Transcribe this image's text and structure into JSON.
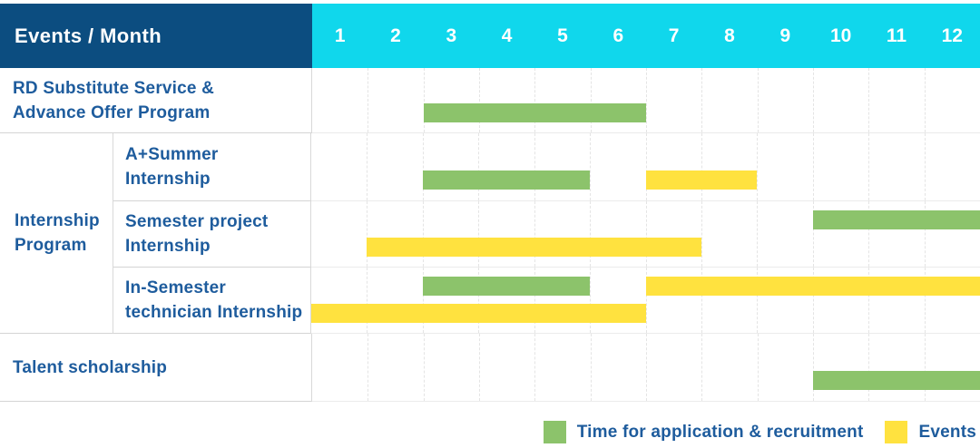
{
  "colors": {
    "header_bg": "#0c4d80",
    "month_header_bg": "#10d7ec",
    "header_text": "#ffffff",
    "label_text": "#1e5c9d",
    "application_bar": "#8cc36b",
    "event_bar": "#ffe23f"
  },
  "table": {
    "header": {
      "title": "Events / Month",
      "months": [
        "1",
        "2",
        "3",
        "4",
        "5",
        "6",
        "7",
        "8",
        "9",
        "10",
        "11",
        "12"
      ]
    },
    "group": {
      "label": "Internship\nProgram"
    },
    "rows": [
      {
        "label": "RD Substitute Service &\nAdvance Offer Program",
        "group": null,
        "lanes": 1,
        "bars": [
          {
            "kind": "application",
            "start": 3,
            "end": 6,
            "lane": 0
          }
        ]
      },
      {
        "label": "A+Summer\nInternship",
        "group": "Internship Program",
        "lanes": 1,
        "bars": [
          {
            "kind": "application",
            "start": 3,
            "end": 5,
            "lane": 0
          },
          {
            "kind": "event",
            "start": 7,
            "end": 8,
            "lane": 0
          }
        ]
      },
      {
        "label": "Semester project\nInternship",
        "group": "Internship Program",
        "lanes": 2,
        "bars": [
          {
            "kind": "application",
            "start": 10,
            "end": 12,
            "lane": 0
          },
          {
            "kind": "event",
            "start": 2,
            "end": 7,
            "lane": 1
          }
        ]
      },
      {
        "label": "In-Semester\ntechnician Internship",
        "group": "Internship Program",
        "lanes": 2,
        "bars": [
          {
            "kind": "application",
            "start": 3,
            "end": 5,
            "lane": 0
          },
          {
            "kind": "event",
            "start": 7,
            "end": 12,
            "lane": 0
          },
          {
            "kind": "event",
            "start": 1,
            "end": 6,
            "lane": 1
          }
        ]
      },
      {
        "label": "Talent scholarship",
        "group": null,
        "lanes": 1,
        "bars": [
          {
            "kind": "application",
            "start": 10,
            "end": 12,
            "lane": 0
          }
        ]
      }
    ]
  },
  "legend": [
    {
      "kind": "application",
      "label": "Time for application & recruitment",
      "color": "#8cc36b"
    },
    {
      "kind": "event",
      "label": "Events",
      "color": "#ffe23f"
    }
  ],
  "chart_data": {
    "type": "bar",
    "subtype": "gantt",
    "title": "Events / Month",
    "x": {
      "label": "Month",
      "ticks": [
        1,
        2,
        3,
        4,
        5,
        6,
        7,
        8,
        9,
        10,
        11,
        12
      ],
      "range": [
        1,
        12
      ]
    },
    "legend": {
      "green": "Time for application & recruitment",
      "yellow": "Events"
    },
    "tasks": [
      {
        "name": "RD Substitute Service & Advance Offer Program",
        "group": null,
        "application_recruitment_months": [
          [
            3,
            6
          ]
        ],
        "event_months": []
      },
      {
        "name": "A+Summer Internship",
        "group": "Internship Program",
        "application_recruitment_months": [
          [
            3,
            5
          ]
        ],
        "event_months": [
          [
            7,
            8
          ]
        ]
      },
      {
        "name": "Semester project Internship",
        "group": "Internship Program",
        "application_recruitment_months": [
          [
            10,
            12
          ]
        ],
        "event_months": [
          [
            2,
            7
          ]
        ]
      },
      {
        "name": "In-Semester technician Internship",
        "group": "Internship Program",
        "application_recruitment_months": [
          [
            3,
            5
          ]
        ],
        "event_months": [
          [
            1,
            6
          ],
          [
            7,
            12
          ]
        ]
      },
      {
        "name": "Talent scholarship",
        "group": null,
        "application_recruitment_months": [
          [
            10,
            12
          ]
        ],
        "event_months": []
      }
    ]
  }
}
